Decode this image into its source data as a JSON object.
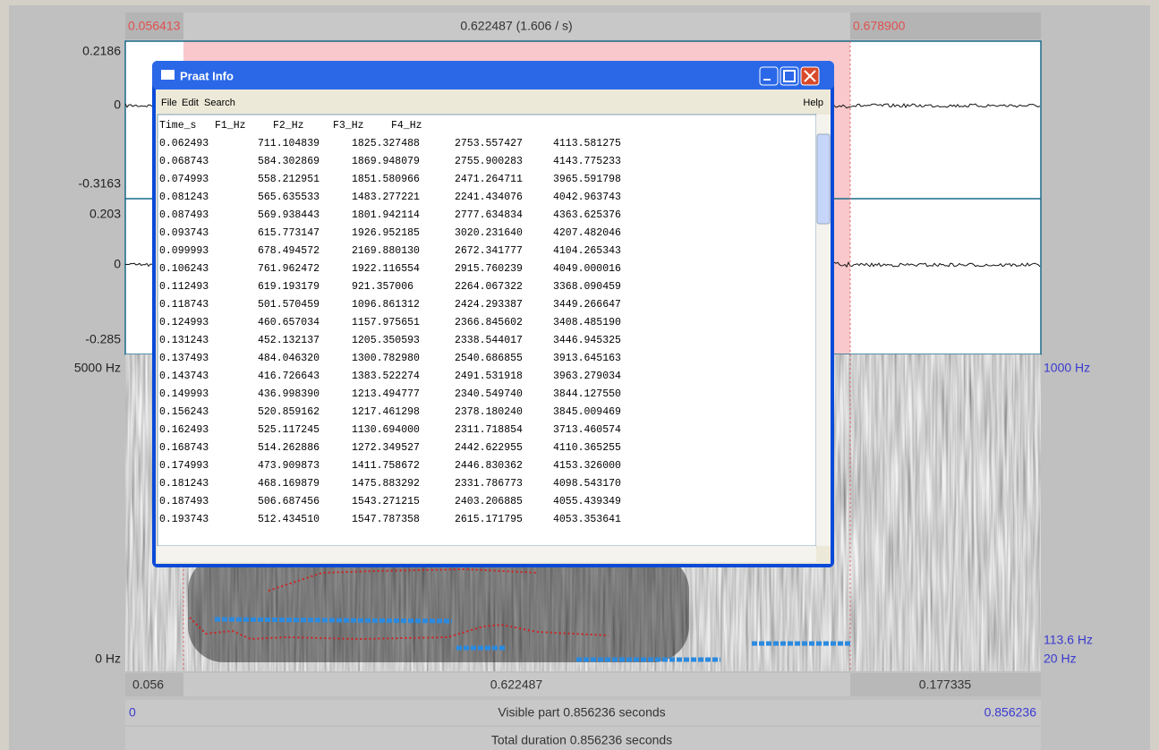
{
  "editor": {
    "top_bar": {
      "left": "0.056413",
      "center": "0.622487 (1.606 / s)",
      "right": "0.678900"
    },
    "waveform_labels": [
      "0.2186",
      "0",
      "-0.3163",
      "0.203",
      "0",
      "-0.285"
    ],
    "spectrogram_left": [
      "5000 Hz",
      "0 Hz"
    ],
    "spectrogram_right": [
      "1000 Hz",
      "113.6 Hz",
      "20 Hz"
    ],
    "time_bar": {
      "left": "0.056",
      "center": "0.622487",
      "right": "0.177335"
    },
    "visible_bar": {
      "left": "0",
      "center": "Visible part 0.856236 seconds",
      "right": "0.856236"
    },
    "total_bar": "Total duration 0.856236 seconds"
  },
  "info_window": {
    "title": "Praat Info",
    "menu": [
      "File",
      "Edit",
      "Search"
    ],
    "help": "Help",
    "header": [
      "Time_s",
      "F1_Hz",
      "F2_Hz",
      "F3_Hz",
      "F4_Hz"
    ],
    "rows": [
      [
        "0.062493",
        "711.104839",
        "1825.327488",
        "2753.557427",
        "4113.581275"
      ],
      [
        "0.068743",
        "584.302869",
        "1869.948079",
        "2755.900283",
        "4143.775233"
      ],
      [
        "0.074993",
        "558.212951",
        "1851.580966",
        "2471.264711",
        "3965.591798"
      ],
      [
        "0.081243",
        "565.635533",
        "1483.277221",
        "2241.434076",
        "4042.963743"
      ],
      [
        "0.087493",
        "569.938443",
        "1801.942114",
        "2777.634834",
        "4363.625376"
      ],
      [
        "0.093743",
        "615.773147",
        "1926.952185",
        "3020.231640",
        "4207.482046"
      ],
      [
        "0.099993",
        "678.494572",
        "2169.880130",
        "2672.341777",
        "4104.265343"
      ],
      [
        "0.106243",
        "761.962472",
        "1922.116554",
        "2915.760239",
        "4049.000016"
      ],
      [
        "0.112493",
        "619.193179",
        "921.357006",
        "2264.067322",
        "3368.090459"
      ],
      [
        "0.118743",
        "501.570459",
        "1096.861312",
        "2424.293387",
        "3449.266647"
      ],
      [
        "0.124993",
        "460.657034",
        "1157.975651",
        "2366.845602",
        "3408.485190"
      ],
      [
        "0.131243",
        "452.132137",
        "1205.350593",
        "2338.544017",
        "3446.945325"
      ],
      [
        "0.137493",
        "484.046320",
        "1300.782980",
        "2540.686855",
        "3913.645163"
      ],
      [
        "0.143743",
        "416.726643",
        "1383.522274",
        "2491.531918",
        "3963.279034"
      ],
      [
        "0.149993",
        "436.998390",
        "1213.494777",
        "2340.549740",
        "3844.127550"
      ],
      [
        "0.156243",
        "520.859162",
        "1217.461298",
        "2378.180240",
        "3845.009469"
      ],
      [
        "0.162493",
        "525.117245",
        "1130.694000",
        "2311.718854",
        "3713.460574"
      ],
      [
        "0.168743",
        "514.262886",
        "1272.349527",
        "2442.622955",
        "4110.365255"
      ],
      [
        "0.174993",
        "473.909873",
        "1411.758672",
        "2446.830362",
        "4153.326000"
      ],
      [
        "0.181243",
        "468.169879",
        "1475.883292",
        "2331.786773",
        "4098.543170"
      ],
      [
        "0.187493",
        "506.687456",
        "1543.271215",
        "2403.206885",
        "4055.439349"
      ],
      [
        "0.193743",
        "512.434510",
        "1547.787358",
        "2615.171795",
        "4053.353641"
      ]
    ]
  }
}
